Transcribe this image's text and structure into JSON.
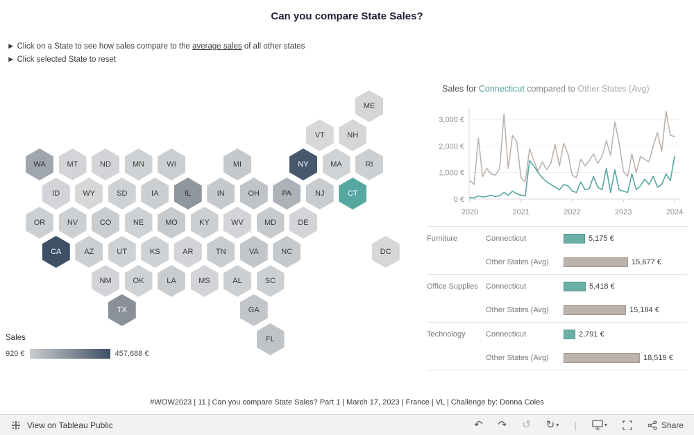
{
  "page": {
    "title": "Can you compare State Sales?",
    "instruction_1_prefix": "► Click on a State to see how sales compare to the ",
    "instruction_1_link": "average sales",
    "instruction_1_suffix": " of all other states",
    "instruction_2": "► Click selected State to reset",
    "footer": "#WOW2023 | 11 | Can you compare State Sales? Part 1 | March 17, 2023 | France | VL | Challenge by: Donna Coles"
  },
  "legend": {
    "title": "Sales",
    "min_label": "920 €",
    "max_label": "457,688 €",
    "gradient_start": "#CBCDCF",
    "gradient_end": "#3E5065"
  },
  "chart_title": {
    "prefix": "Sales for ",
    "state": "Connecticut",
    "middle": " compared to ",
    "other": "Other States (Avg)"
  },
  "colors": {
    "connecticut_teal": "#56A7A0",
    "other_states_taupe": "#BDB3AC",
    "selected_dark": "#3E5065"
  },
  "map_states": [
    {
      "abbr": "ME",
      "col": 10,
      "row": 0,
      "fill": "#D4D6D8",
      "text": "#3A3A3A"
    },
    {
      "abbr": "VT",
      "col": 8.5,
      "row": 1,
      "fill": "#D6D8DA",
      "text": "#3A3A3A"
    },
    {
      "abbr": "NH",
      "col": 9.5,
      "row": 1,
      "fill": "#D4D6D8",
      "text": "#3A3A3A"
    },
    {
      "abbr": "WA",
      "col": 0,
      "row": 2,
      "fill": "#9FA6AD",
      "text": "#2F2F2F"
    },
    {
      "abbr": "MT",
      "col": 1,
      "row": 2,
      "fill": "#D2D4D7",
      "text": "#3A3A3A"
    },
    {
      "abbr": "ND",
      "col": 2,
      "row": 2,
      "fill": "#D2D4D7",
      "text": "#3A3A3A"
    },
    {
      "abbr": "MN",
      "col": 3,
      "row": 2,
      "fill": "#CFD2D4",
      "text": "#3A3A3A"
    },
    {
      "abbr": "WI",
      "col": 4,
      "row": 2,
      "fill": "#CCCFD2",
      "text": "#3A3A3A"
    },
    {
      "abbr": "MI",
      "col": 6,
      "row": 2,
      "fill": "#C5C9CD",
      "text": "#3A3A3A"
    },
    {
      "abbr": "NY",
      "col": 8,
      "row": 2,
      "fill": "#46586D",
      "text": "#FFFFFF"
    },
    {
      "abbr": "MA",
      "col": 9,
      "row": 2,
      "fill": "#D0D3D5",
      "text": "#3A3A3A"
    },
    {
      "abbr": "RI",
      "col": 10,
      "row": 2,
      "fill": "#CDD0D3",
      "text": "#3A3A3A"
    },
    {
      "abbr": "ID",
      "col": 0.5,
      "row": 3,
      "fill": "#D2D4D7",
      "text": "#3A3A3A"
    },
    {
      "abbr": "WY",
      "col": 1.5,
      "row": 3,
      "fill": "#D5D7D9",
      "text": "#3A3A3A"
    },
    {
      "abbr": "SD",
      "col": 2.5,
      "row": 3,
      "fill": "#CFD2D4",
      "text": "#3A3A3A"
    },
    {
      "abbr": "IA",
      "col": 3.5,
      "row": 3,
      "fill": "#CCCFD2",
      "text": "#3A3A3A"
    },
    {
      "abbr": "IL",
      "col": 4.5,
      "row": 3,
      "fill": "#8F969E",
      "text": "#2F2F2F"
    },
    {
      "abbr": "IN",
      "col": 5.5,
      "row": 3,
      "fill": "#C5C9CD",
      "text": "#3A3A3A"
    },
    {
      "abbr": "OH",
      "col": 6.5,
      "row": 3,
      "fill": "#BFC4C8",
      "text": "#3A3A3A"
    },
    {
      "abbr": "PA",
      "col": 7.5,
      "row": 3,
      "fill": "#ACB2B8",
      "text": "#2F2F2F"
    },
    {
      "abbr": "NJ",
      "col": 8.5,
      "row": 3,
      "fill": "#C9CCCF",
      "text": "#3A3A3A"
    },
    {
      "abbr": "CT",
      "col": 9.5,
      "row": 3,
      "fill": "#57A7A1",
      "text": "#FFFFFF"
    },
    {
      "abbr": "OR",
      "col": 0,
      "row": 4,
      "fill": "#CDD0D3",
      "text": "#3A3A3A"
    },
    {
      "abbr": "NV",
      "col": 1,
      "row": 4,
      "fill": "#CDD0D3",
      "text": "#3A3A3A"
    },
    {
      "abbr": "CO",
      "col": 2,
      "row": 4,
      "fill": "#CACDD0",
      "text": "#3A3A3A"
    },
    {
      "abbr": "NE",
      "col": 3,
      "row": 4,
      "fill": "#CFD2D4",
      "text": "#3A3A3A"
    },
    {
      "abbr": "MO",
      "col": 4,
      "row": 4,
      "fill": "#C7CACD",
      "text": "#3A3A3A"
    },
    {
      "abbr": "KY",
      "col": 5,
      "row": 4,
      "fill": "#CDD0D3",
      "text": "#3A3A3A"
    },
    {
      "abbr": "WV",
      "col": 6,
      "row": 4,
      "fill": "#D2D4D7",
      "text": "#3A3A3A"
    },
    {
      "abbr": "MD",
      "col": 7,
      "row": 4,
      "fill": "#C7CACD",
      "text": "#3A3A3A"
    },
    {
      "abbr": "DE",
      "col": 8,
      "row": 4,
      "fill": "#D2D4D7",
      "text": "#3A3A3A"
    },
    {
      "abbr": "CA",
      "col": 0.5,
      "row": 5,
      "fill": "#3E5065",
      "text": "#FFFFFF"
    },
    {
      "abbr": "AZ",
      "col": 1.5,
      "row": 5,
      "fill": "#CDD0D3",
      "text": "#3A3A3A"
    },
    {
      "abbr": "UT",
      "col": 2.5,
      "row": 5,
      "fill": "#CFD2D4",
      "text": "#3A3A3A"
    },
    {
      "abbr": "KS",
      "col": 3.5,
      "row": 5,
      "fill": "#CFD2D4",
      "text": "#3A3A3A"
    },
    {
      "abbr": "AR",
      "col": 4.5,
      "row": 5,
      "fill": "#D2D4D7",
      "text": "#3A3A3A"
    },
    {
      "abbr": "TN",
      "col": 5.5,
      "row": 5,
      "fill": "#C9CCCF",
      "text": "#3A3A3A"
    },
    {
      "abbr": "VA",
      "col": 6.5,
      "row": 5,
      "fill": "#C2C6CA",
      "text": "#3A3A3A"
    },
    {
      "abbr": "NC",
      "col": 7.5,
      "row": 5,
      "fill": "#C5C9CC",
      "text": "#3A3A3A"
    },
    {
      "abbr": "DC",
      "col": 10.5,
      "row": 5,
      "fill": "#D5D7D9",
      "text": "#3A3A3A"
    },
    {
      "abbr": "NM",
      "col": 2,
      "row": 6,
      "fill": "#D2D4D7",
      "text": "#3A3A3A"
    },
    {
      "abbr": "OK",
      "col": 3,
      "row": 6,
      "fill": "#CFD2D4",
      "text": "#3A3A3A"
    },
    {
      "abbr": "LA",
      "col": 4,
      "row": 6,
      "fill": "#CACDD0",
      "text": "#3A3A3A"
    },
    {
      "abbr": "MS",
      "col": 5,
      "row": 6,
      "fill": "#D2D4D7",
      "text": "#3A3A3A"
    },
    {
      "abbr": "AL",
      "col": 6,
      "row": 6,
      "fill": "#CDD0D3",
      "text": "#3A3A3A"
    },
    {
      "abbr": "SC",
      "col": 7,
      "row": 6,
      "fill": "#CDD0D3",
      "text": "#3A3A3A"
    },
    {
      "abbr": "TX",
      "col": 2.5,
      "row": 7,
      "fill": "#8A9199",
      "text": "#FFFFFF"
    },
    {
      "abbr": "GA",
      "col": 6.5,
      "row": 7,
      "fill": "#C2C6CA",
      "text": "#3A3A3A"
    },
    {
      "abbr": "FL",
      "col": 7,
      "row": 8,
      "fill": "#BFC4C8",
      "text": "#3A3A3A"
    }
  ],
  "chart_data": [
    {
      "type": "line",
      "title": "Sales for Connecticut compared to Other States (Avg)",
      "x_start": "2020-01",
      "x_interval": "month",
      "x_tick_labels": [
        "2020",
        "2021",
        "2022",
        "2023",
        "2024"
      ],
      "y_tick_labels": [
        "0 €",
        "1,000 €",
        "2,000 €",
        "3,000 €"
      ],
      "y_tick_values": [
        0,
        1000,
        2000,
        3000
      ],
      "ylim": [
        0,
        3400
      ],
      "legend_position": "title",
      "grid": "horizontal",
      "series": [
        {
          "name": "Connecticut",
          "color": "#56A7A0",
          "values": [
            60,
            40,
            120,
            80,
            100,
            150,
            90,
            130,
            250,
            150,
            300,
            200,
            150,
            120,
            1450,
            1250,
            1000,
            800,
            650,
            550,
            450,
            350,
            550,
            500,
            300,
            250,
            650,
            350,
            400,
            850,
            450,
            350,
            1150,
            250,
            1100,
            350,
            300,
            250,
            950,
            350,
            500,
            750,
            550,
            850,
            450,
            550,
            950,
            700,
            1600
          ]
        },
        {
          "name": "Other States (Avg)",
          "color": "#BDB3AC",
          "values": [
            700,
            550,
            2300,
            850,
            1150,
            950,
            900,
            1150,
            3200,
            1150,
            2400,
            2150,
            800,
            650,
            1900,
            1450,
            1050,
            1400,
            1100,
            1350,
            2050,
            1250,
            2100,
            1700,
            900,
            800,
            1500,
            1250,
            1450,
            1700,
            1350,
            1600,
            2200,
            1650,
            2900,
            2100,
            1050,
            850,
            1700,
            1000,
            1600,
            1500,
            1400,
            2000,
            2500,
            1800,
            3300,
            2400,
            2350
          ]
        }
      ]
    },
    {
      "type": "bar",
      "orientation": "horizontal",
      "max_value": 18519,
      "groups": [
        {
          "category": "Furniture",
          "rows": [
            {
              "label": "Connecticut",
              "value": 5175,
              "display": "5,175 €"
            },
            {
              "label": "Other States (Avg)",
              "value": 15677,
              "display": "15,677 €"
            }
          ]
        },
        {
          "category": "Office Supplies",
          "rows": [
            {
              "label": "Connecticut",
              "value": 5418,
              "display": "5,418 €"
            },
            {
              "label": "Other States (Avg)",
              "value": 15184,
              "display": "15,184 €"
            }
          ]
        },
        {
          "category": "Technology",
          "rows": [
            {
              "label": "Connecticut",
              "value": 2791,
              "display": "2,791 €"
            },
            {
              "label": "Other States (Avg)",
              "value": 18519,
              "display": "18,519 €"
            }
          ]
        }
      ]
    }
  ],
  "toolbar": {
    "view_label": "View on Tableau Public",
    "share_label": "Share",
    "icons": {
      "undo": "↶",
      "redo": "↷",
      "reset": "↺",
      "refresh": "↻",
      "caret": "▾",
      "separator": "|"
    }
  }
}
